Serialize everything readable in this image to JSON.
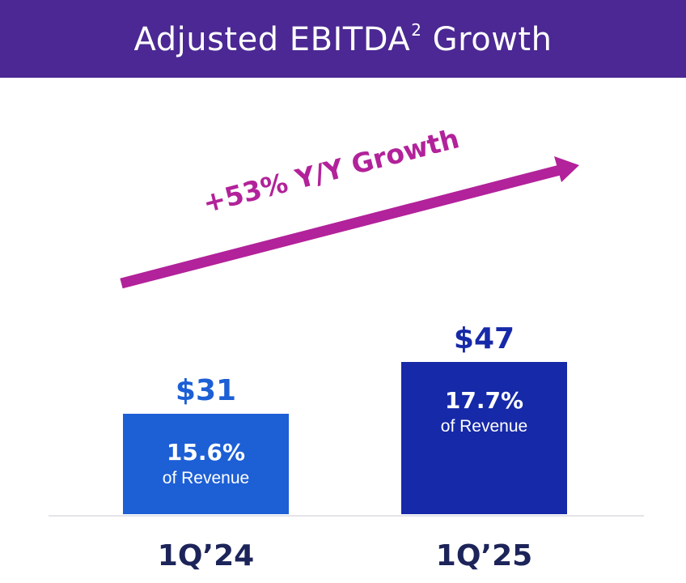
{
  "header": {
    "title": "Adjusted EBITDA",
    "title_superscript": "2",
    "title_suffix": " Growth",
    "background": "#4b2893"
  },
  "chart_data": {
    "type": "bar",
    "title": "Adjusted EBITDA2 Growth",
    "categories": [
      "1Q’24",
      "1Q’25"
    ],
    "values": [
      31,
      47
    ],
    "value_labels": [
      "$31",
      "$47"
    ],
    "margin_labels": [
      "15.6%",
      "17.7%"
    ],
    "margin_sublabel": "of Revenue",
    "bar_colors": [
      "#1d5fd5",
      "#1629a8"
    ],
    "value_label_colors": [
      "#1d5fd5",
      "#1629a8"
    ],
    "axis_label_color": "#1c2459",
    "growth_annotation": "+53% Y/Y Growth",
    "growth_color": "#b2229a",
    "ylim": [
      0,
      60
    ],
    "grid": false
  }
}
